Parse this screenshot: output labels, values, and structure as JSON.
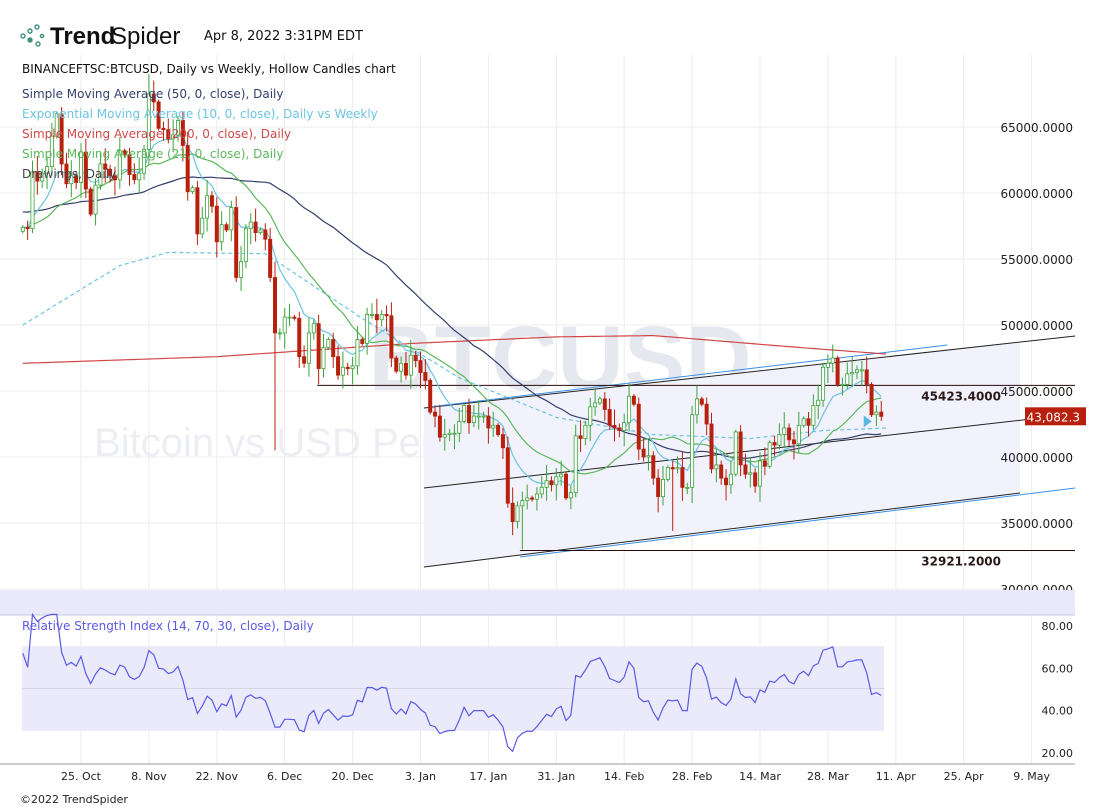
{
  "header": {
    "brand_bold": "Trend",
    "brand_light": "Spider",
    "timestamp": "Apr 8, 2022 3:31PM EDT",
    "symbol_line": "BINANCEFTSC:BTCUSD, Daily vs Weekly, Hollow Candles chart"
  },
  "legend": [
    {
      "label": "Simple Moving Average (50, 0, close), Daily",
      "color": "#34406b"
    },
    {
      "label": "Exponential Moving Average (10, 0, close), Daily vs Weekly",
      "color": "#6cc4e0"
    },
    {
      "label": "Simple Moving Average (200, 0, close), Daily",
      "color": "#d04848"
    },
    {
      "label": "Simple Moving Average (21, 0, close), Daily",
      "color": "#5cb85c"
    },
    {
      "label": "Drawings, Daily",
      "color": "#444444"
    }
  ],
  "watermark": {
    "symbol": "BTCUSD",
    "description": "Bitcoin vs USD Perp. Fin. Futures · BINANCEFTSC"
  },
  "rsi": {
    "label": "Relative Strength Index (14, 70, 30, close), Daily",
    "color": "#5a5ae6"
  },
  "footer": "©2022 TrendSpider",
  "chart_data": {
    "type": "candlestick",
    "start_date": "2021-10-13",
    "closes": [
      57400,
      57300,
      61600,
      60900,
      61500,
      62000,
      64300,
      66000,
      62200,
      60700,
      61300,
      60800,
      63100,
      60300,
      58400,
      60600,
      62200,
      61800,
      61300,
      61000,
      63200,
      62900,
      61400,
      61000,
      61500,
      63300,
      67500,
      66900,
      64900,
      64800,
      64100,
      64400,
      65500,
      63600,
      60100,
      60400,
      56900,
      58100,
      59800,
      59000,
      56300,
      57600,
      57200,
      58900,
      53600,
      54800,
      57300,
      57800,
      57000,
      57200,
      56500,
      53600,
      49400,
      49400,
      50600,
      50600,
      50500,
      47600,
      47100,
      49400,
      50100,
      46700,
      48300,
      48900,
      47600,
      46200,
      46800,
      46700,
      46900,
      48900,
      48600,
      50800,
      50800,
      50400,
      50800,
      50700,
      47500,
      46500,
      47100,
      46200,
      47700,
      47300,
      46400,
      45800,
      43400,
      43100,
      41500,
      41700,
      41800,
      41800,
      42700,
      43900,
      42600,
      43100,
      43100,
      43100,
      42200,
      42400,
      41700,
      40700,
      36500,
      35100,
      36300,
      36700,
      36900,
      36800,
      37200,
      37700,
      38200,
      37900,
      38500,
      38700,
      36900,
      37300,
      41600,
      41400,
      42400,
      43800,
      44100,
      44400,
      43600,
      42400,
      42200,
      42000,
      42600,
      44600,
      44000,
      40600,
      40000,
      40100,
      38400,
      37000,
      38300,
      39200,
      39100,
      39200,
      37700,
      37700,
      43200,
      44400,
      44000,
      42500,
      39100,
      39400,
      38400,
      37900,
      38700,
      41900,
      39400,
      38700,
      38800,
      37800,
      39700,
      39300,
      41100,
      40900,
      41700,
      42200,
      41300,
      41000,
      42400,
      42900,
      42400,
      43900,
      44300,
      46800,
      47100,
      47500,
      45500,
      45500,
      46300,
      46400,
      46600,
      46600,
      45500,
      43200,
      43400,
      43080
    ],
    "wick_overrides": {
      "52": {
        "low": 40500
      },
      "103": {
        "low": 33000
      },
      "134": {
        "low": 34400
      },
      "26": {
        "high": 69000
      }
    },
    "sma200_keypoints": [
      [
        0,
        47100
      ],
      [
        40,
        47600
      ],
      [
        80,
        48600
      ],
      [
        110,
        49100
      ],
      [
        130,
        49200
      ],
      [
        160,
        48300
      ],
      [
        178,
        47800
      ]
    ],
    "weekly_ema_keypoints": [
      [
        0,
        50000
      ],
      [
        20,
        54500
      ],
      [
        30,
        55500
      ],
      [
        50,
        55400
      ],
      [
        70,
        50500
      ],
      [
        90,
        46000
      ],
      [
        110,
        43000
      ],
      [
        130,
        41700
      ],
      [
        150,
        41400
      ],
      [
        165,
        42000
      ],
      [
        178,
        42200
      ]
    ],
    "last_price": "43,082.3",
    "y_ticks": [
      "65000.0000",
      "60000.0000",
      "55000.0000",
      "50000.0000",
      "45000.0000",
      "40000.0000",
      "35000.0000",
      "30000.0000"
    ],
    "y_tick_values": [
      65000,
      60000,
      55000,
      50000,
      45000,
      40000,
      35000,
      30000
    ],
    "x_ticks": [
      {
        "label": "25. Oct",
        "day": 12
      },
      {
        "label": "8. Nov",
        "day": 26
      },
      {
        "label": "22. Nov",
        "day": 40
      },
      {
        "label": "6. Dec",
        "day": 54
      },
      {
        "label": "20. Dec",
        "day": 68
      },
      {
        "label": "3. Jan",
        "day": 82
      },
      {
        "label": "17. Jan",
        "day": 96
      },
      {
        "label": "31. Jan",
        "day": 110
      },
      {
        "label": "14. Feb",
        "day": 124
      },
      {
        "label": "28. Feb",
        "day": 138
      },
      {
        "label": "14. Mar",
        "day": 152
      },
      {
        "label": "28. Mar",
        "day": 166
      },
      {
        "label": "11. Apr",
        "day": 180
      },
      {
        "label": "25. Apr",
        "day": 194
      },
      {
        "label": "9. May",
        "day": 208
      }
    ],
    "rsi_ticks": [
      "80.00",
      "60.00",
      "40.00",
      "20.00"
    ],
    "rsi_tick_values": [
      80,
      60,
      40,
      20
    ],
    "rsi_band": [
      30,
      70
    ],
    "levels": [
      {
        "label": "45423.4000",
        "price": 45423.4,
        "from_day": 60.7
      },
      {
        "label": "32921.2000",
        "price": 32921.2,
        "from_day": 102.5
      }
    ],
    "trendlines": [
      {
        "name": "channel-upper",
        "from": [
          82.7,
          43710
        ],
        "to": [
          217,
          49170
        ],
        "color": "#222222"
      },
      {
        "name": "channel-upper-blue",
        "from": [
          84,
          43800
        ],
        "to": [
          190.6,
          48485
        ],
        "color": "#3a8ee6"
      },
      {
        "name": "channel-middle",
        "from": [
          82.7,
          37650
        ],
        "to": [
          217,
          43260
        ],
        "color": "#222222"
      },
      {
        "name": "channel-lower",
        "from": [
          82.7,
          31670
        ],
        "to": [
          205.6,
          37270
        ],
        "color": "#222222"
      },
      {
        "name": "support-blue",
        "from": [
          102.5,
          32420
        ],
        "to": [
          217,
          37650
        ],
        "color": "#3a8ee6"
      }
    ],
    "channel_fill": {
      "from_day": 82.7,
      "to_day": 205.6
    }
  }
}
